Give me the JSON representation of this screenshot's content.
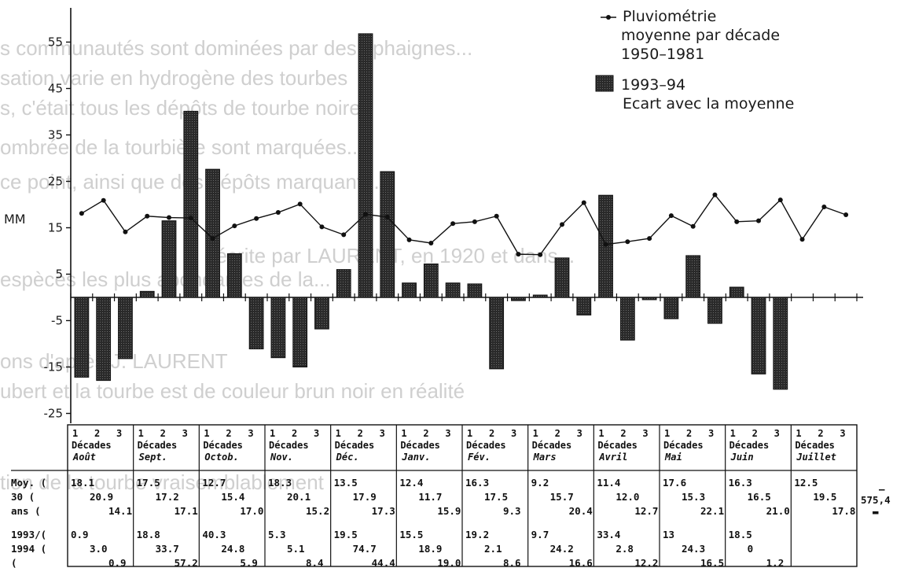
{
  "background_text": [
    "s communautés sont dominées par des sphaignes...",
    "sation varie en hydrogène des tourbes",
    "s, c'était tous les dépôts de tourbe noire",
    "ombrée de la tourbière sont marquées...",
    "ce point, ainsi que des dépôts marquant...",
    "décrite par LAURENT, en 1920 et dans...",
    "espèces les plus abondantes de la...",
    "ons d'après J. LAURENT",
    "ubert et la tourbe est de couleur brun noir en réalité",
    "tion de la tourbe vraisemblablement"
  ],
  "legend": {
    "line_label_1": "Pluviométrie",
    "line_label_2": "moyenne par décade",
    "line_label_3": "1950–1981",
    "bar_label_1": "1993–94",
    "bar_label_2": "Ecart avec la moyenne"
  },
  "table": {
    "decade_numbers": [
      "1",
      "2",
      "3"
    ],
    "decades_word": "Décades",
    "row_labels": {
      "moy": "Moy. (",
      "thirty": "30   (",
      "ans": "ans  (",
      "y1993": "1993/(",
      "y1994": "1994 (",
      "blank": "     ("
    },
    "months": [
      {
        "name": "Août",
        "moy": [
          "18.1",
          "20.9",
          "14.1"
        ],
        "y9394": [
          "0.9",
          "3.0",
          "0.9"
        ]
      },
      {
        "name": "Sept.",
        "moy": [
          "17.5",
          "17.2",
          "17.1"
        ],
        "y9394": [
          "18.8",
          "33.7",
          "57.2"
        ]
      },
      {
        "name": "Octob.",
        "moy": [
          "12.7",
          "15.4",
          "17.0"
        ],
        "y9394": [
          "40.3",
          "24.8",
          "5.9"
        ]
      },
      {
        "name": "Nov.",
        "moy": [
          "18.3",
          "20.1",
          "15.2"
        ],
        "y9394": [
          "5.3",
          "5.1",
          "8.4"
        ]
      },
      {
        "name": "Déc.",
        "moy": [
          "13.5",
          "17.9",
          "17.3"
        ],
        "y9394": [
          "19.5",
          "74.7",
          "44.4"
        ]
      },
      {
        "name": "Janv.",
        "moy": [
          "12.4",
          "11.7",
          "15.9"
        ],
        "y9394": [
          "15.5",
          "18.9",
          "19.0"
        ]
      },
      {
        "name": "Fév.",
        "moy": [
          "16.3",
          "17.5",
          "9.3"
        ],
        "y9394": [
          "19.2",
          "2.1",
          "8.6"
        ]
      },
      {
        "name": "Mars",
        "moy": [
          "9.2",
          "15.7",
          "20.4"
        ],
        "y9394": [
          "9.7",
          "24.2",
          "16.6"
        ]
      },
      {
        "name": "Avril",
        "moy": [
          "11.4",
          "12.0",
          "12.7"
        ],
        "y9394": [
          "33.4",
          "2.8",
          "12.2"
        ]
      },
      {
        "name": "Mai",
        "moy": [
          "17.6",
          "15.3",
          "22.1"
        ],
        "y9394": [
          "13",
          "24.3",
          "16.5"
        ]
      },
      {
        "name": "Juin",
        "moy": [
          "16.3",
          "16.5",
          "21.0"
        ],
        "y9394": [
          "18.5",
          "0",
          "1.2"
        ]
      },
      {
        "name": "Juillet",
        "moy": [
          "12.5",
          "19.5",
          "17.8"
        ],
        "y9394": [
          "",
          "",
          ""
        ]
      }
    ],
    "total_dash": "–",
    "total_value": "575,4",
    "total_unit_mark": "▬"
  },
  "chart_data": {
    "type": "bar",
    "ylabel": "MM",
    "ylim": [
      -25,
      60
    ],
    "yticks": [
      55,
      45,
      35,
      25,
      15,
      5,
      -5,
      -15,
      -25
    ],
    "ytick_labels": [
      "55",
      "45",
      "35",
      "25",
      "15",
      "5",
      "-5",
      "-15",
      "-25"
    ],
    "grid": false,
    "legend_position": "top-right",
    "categories": [
      "Août 1",
      "Août 2",
      "Août 3",
      "Sept. 1",
      "Sept. 2",
      "Sept. 3",
      "Octob. 1",
      "Octob. 2",
      "Octob. 3",
      "Nov. 1",
      "Nov. 2",
      "Nov. 3",
      "Déc. 1",
      "Déc. 2",
      "Déc. 3",
      "Janv. 1",
      "Janv. 2",
      "Janv. 3",
      "Fév. 1",
      "Fév. 2",
      "Fév. 3",
      "Mars 1",
      "Mars 2",
      "Mars 3",
      "Avril 1",
      "Avril 2",
      "Avril 3",
      "Mai 1",
      "Mai 2",
      "Mai 3",
      "Juin 1",
      "Juin 2",
      "Juin 3",
      "Juillet 1",
      "Juillet 2",
      "Juillet 3"
    ],
    "series": [
      {
        "name": "Pluviométrie moyenne par décade 1950–1981",
        "kind": "line",
        "color": "#111111",
        "values": [
          18.1,
          20.9,
          14.1,
          17.5,
          17.2,
          17.1,
          12.7,
          15.4,
          17.0,
          18.3,
          20.1,
          15.2,
          13.5,
          17.9,
          17.3,
          12.4,
          11.7,
          15.9,
          16.3,
          17.5,
          9.3,
          9.2,
          15.7,
          20.4,
          11.4,
          12.0,
          12.7,
          17.6,
          15.3,
          22.1,
          16.3,
          16.5,
          21.0,
          12.5,
          19.5,
          17.8
        ]
      },
      {
        "name": "1993–94 Ecart avec la moyenne",
        "kind": "bar",
        "color": "#2b2b2b",
        "values": [
          -17.2,
          -17.9,
          -13.2,
          1.3,
          16.5,
          40.1,
          27.6,
          9.4,
          -11.1,
          -13.0,
          -15.0,
          -6.8,
          6.0,
          56.8,
          27.1,
          3.1,
          7.2,
          3.1,
          2.9,
          -15.4,
          -0.7,
          0.5,
          8.5,
          -3.8,
          22.0,
          -9.2,
          -0.5,
          -4.6,
          9.0,
          -5.6,
          2.2,
          -16.5,
          -19.8,
          0,
          0,
          0
        ]
      }
    ]
  }
}
